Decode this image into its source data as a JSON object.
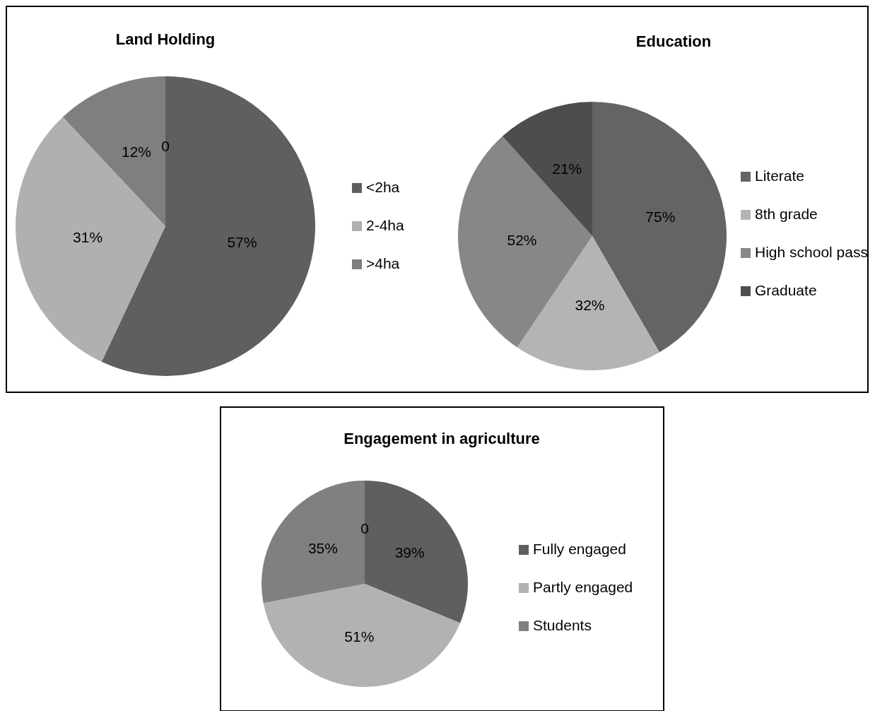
{
  "chart_data": [
    {
      "type": "pie",
      "title": "Land Holding",
      "categories": [
        "<2ha",
        "2-4ha",
        ">4ha",
        null
      ],
      "values": [
        57,
        31,
        12,
        0
      ],
      "colors": [
        "#5f5f5f",
        "#b0b0b0",
        "#7f7f7f",
        "#4d4d4d"
      ],
      "value_labels": [
        "57%",
        "31%",
        "12%",
        "0"
      ],
      "legend": "right"
    },
    {
      "type": "pie",
      "title": "Education",
      "categories": [
        "Literate",
        "8th grade",
        "High school pass",
        "Graduate"
      ],
      "values": [
        75,
        32,
        52,
        21
      ],
      "colors": [
        "#646464",
        "#b4b4b4",
        "#878787",
        "#4d4d4d"
      ],
      "value_labels": [
        "75%",
        "32%",
        "52%",
        "21%"
      ],
      "legend": "right"
    },
    {
      "type": "pie",
      "title": "Engagement in agriculture",
      "categories": [
        "Fully engaged",
        "Partly engaged",
        "Students",
        null
      ],
      "values": [
        39,
        51,
        35,
        0
      ],
      "colors": [
        "#5f5f5f",
        "#b2b2b2",
        "#808080",
        "#4d4d4d"
      ],
      "value_labels": [
        "39%",
        "51%",
        "35%",
        "0"
      ],
      "legend": "right"
    }
  ]
}
